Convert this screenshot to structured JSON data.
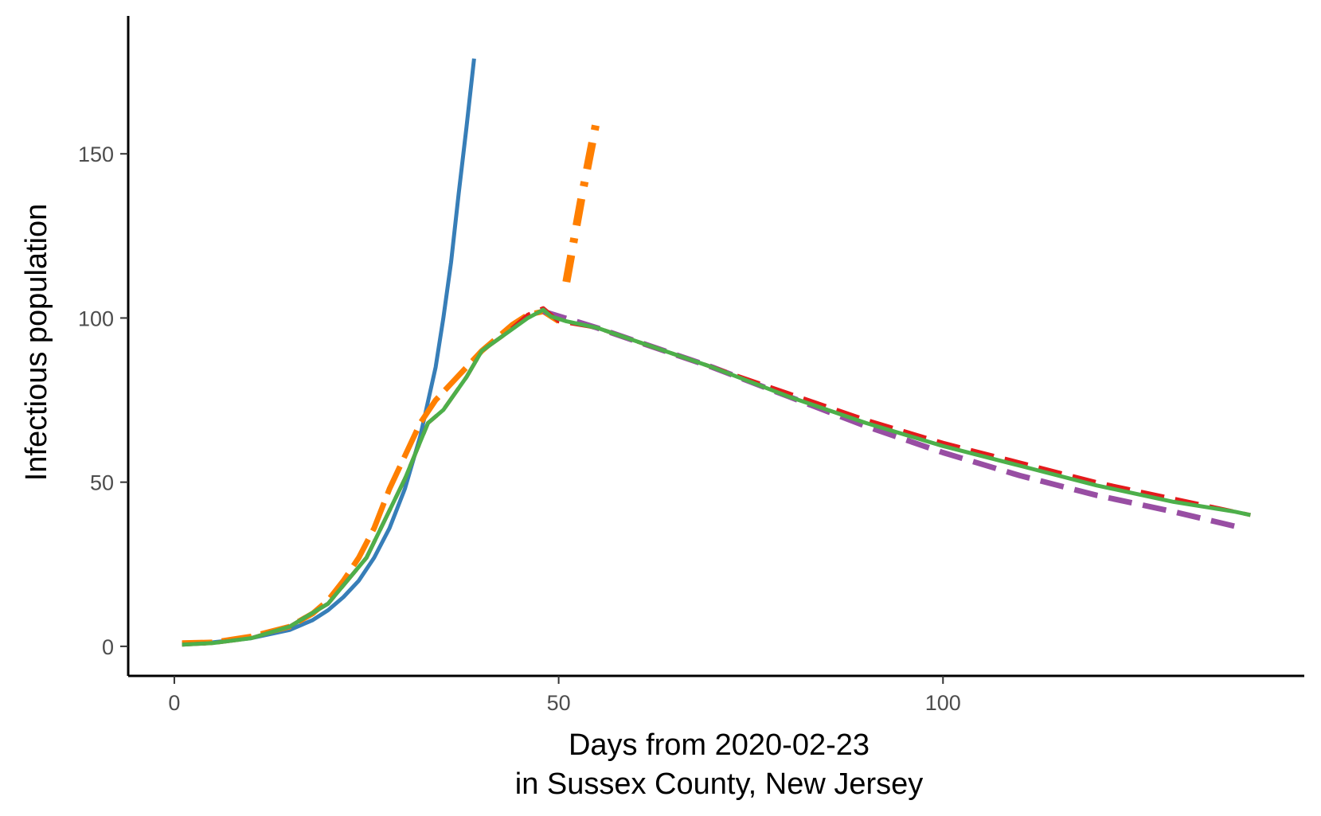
{
  "chart_data": {
    "type": "line",
    "title": "",
    "xlabel_line1": "Days from 2020-02-23",
    "xlabel_line2": "in Sussex County, New Jersey",
    "ylabel": "Infectious population",
    "xlim": [
      -6,
      147
    ],
    "ylim": [
      -9,
      192
    ],
    "x_ticks": [
      0,
      50,
      100
    ],
    "y_ticks": [
      0,
      50,
      100,
      150
    ],
    "grid": false,
    "legend": "none",
    "series": [
      {
        "color": "#377eb8",
        "dash": "solid",
        "width": 5,
        "x": [
          1,
          5,
          10,
          15,
          18,
          20,
          22,
          24,
          26,
          28,
          30,
          32,
          34,
          35,
          36,
          37,
          38,
          39
        ],
        "y": [
          1,
          1.2,
          2.5,
          5,
          8,
          11,
          15,
          20,
          27,
          36,
          48,
          64,
          85,
          100,
          117,
          138,
          158,
          179
        ]
      },
      {
        "color": "#ff7f00",
        "dash": "long-dash",
        "width": 7,
        "x": [
          1,
          5,
          10,
          15,
          18,
          20,
          22,
          24,
          26,
          28,
          30,
          32,
          34,
          36,
          38,
          40,
          42,
          44,
          46,
          48,
          50
        ],
        "y": [
          1,
          1.2,
          3,
          6,
          10,
          14,
          20,
          27,
          36,
          48,
          58,
          68,
          75,
          80,
          85,
          90,
          94,
          98,
          101,
          102,
          99
        ]
      },
      {
        "color": "#ff7f00",
        "dash": "dash-dot",
        "width": 10,
        "x": [
          51,
          53,
          55
        ],
        "y": [
          111,
          137,
          161
        ]
      },
      {
        "color": "#984ea3",
        "dash": "dash",
        "width": 7,
        "x": [
          48,
          55,
          60,
          70,
          80,
          90,
          100,
          110,
          120,
          130,
          139
        ],
        "y": [
          102,
          97,
          93,
          85,
          76,
          67,
          59,
          52,
          46,
          41,
          36
        ]
      },
      {
        "color": "#e41a1c",
        "dash": "dash",
        "width": 5,
        "x": [
          1,
          5,
          10,
          15,
          20,
          25,
          30,
          33,
          35,
          38,
          40,
          43,
          46,
          48,
          50,
          55,
          60,
          70,
          80,
          90,
          100,
          110,
          120,
          130,
          140
        ],
        "y": [
          0.5,
          1,
          2.5,
          6,
          13,
          27,
          51,
          68,
          72,
          82,
          90,
          95,
          101,
          103,
          99,
          97,
          93,
          85,
          77,
          69,
          62,
          56,
          50,
          45,
          40
        ]
      },
      {
        "color": "#4daf4a",
        "dash": "solid",
        "width": 5,
        "x": [
          1,
          5,
          10,
          15,
          20,
          25,
          30,
          33,
          35,
          38,
          40,
          43,
          46,
          48,
          49,
          51,
          55,
          60,
          70,
          80,
          90,
          100,
          110,
          120,
          130,
          138,
          140
        ],
        "y": [
          0.5,
          1,
          2.5,
          6,
          13,
          27,
          51,
          68,
          72,
          82,
          90,
          95,
          100,
          102.5,
          100.5,
          99,
          97,
          93,
          85,
          76,
          68,
          61,
          55,
          49,
          44,
          41,
          40
        ]
      }
    ]
  }
}
